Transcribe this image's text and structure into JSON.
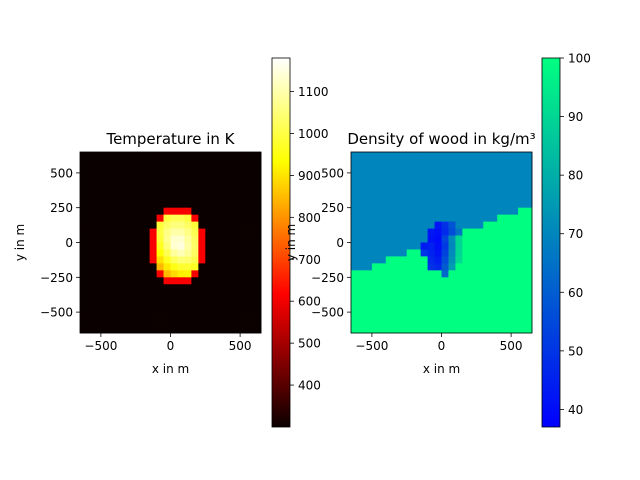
{
  "chart_data": [
    {
      "type": "heatmap",
      "title": "Temperature in K",
      "xlabel": "x in m",
      "ylabel": "y in m",
      "xlim": [
        -650,
        650
      ],
      "ylim": [
        -650,
        650
      ],
      "xticks": [
        {
          "v": -500,
          "label": "−500"
        },
        {
          "v": 0,
          "label": "0"
        },
        {
          "v": 500,
          "label": "500"
        }
      ],
      "yticks": [
        {
          "v": 500,
          "label": "500"
        },
        {
          "v": 250,
          "label": "250"
        },
        {
          "v": 0,
          "label": "0"
        },
        {
          "v": -250,
          "label": "−250"
        },
        {
          "v": -500,
          "label": "−500"
        }
      ],
      "colormap": "hot",
      "background_value": 300,
      "hot_region": {
        "center": [
          50,
          -20
        ],
        "radii": [
          175,
          245
        ],
        "peak": 1180,
        "edge": 850,
        "note": "bright blob with max near upper-right, cooler (orange) towards lower-left"
      },
      "colorbar": {
        "range": [
          300,
          1180
        ],
        "ticks": [
          400,
          500,
          600,
          700,
          800,
          900,
          1000,
          1100
        ],
        "tick_labels": [
          "400",
          "500",
          "600",
          "700",
          "800",
          "900",
          "1000",
          "1100"
        ]
      }
    },
    {
      "type": "heatmap",
      "title": "Density of wood in kg/m³",
      "xlabel": "x in m",
      "ylabel": "y in m",
      "xlim": [
        -650,
        650
      ],
      "ylim": [
        -650,
        650
      ],
      "xticks": [
        {
          "v": -500,
          "label": "−500"
        },
        {
          "v": 0,
          "label": "0"
        },
        {
          "v": 500,
          "label": "500"
        }
      ],
      "yticks": [
        {
          "v": 500,
          "label": "500"
        },
        {
          "v": 250,
          "label": "250"
        },
        {
          "v": 0,
          "label": "0"
        },
        {
          "v": -250,
          "label": "−250"
        },
        {
          "v": -500,
          "label": "−500"
        }
      ],
      "colormap": "winter",
      "upper_region_value": 70,
      "lower_region_value": 100,
      "boundary_line": {
        "slope": 0.38,
        "intercept": 20
      },
      "burned_region": {
        "center": [
          20,
          -30
        ],
        "radii": [
          150,
          200
        ],
        "min": 37
      },
      "colorbar": {
        "range": [
          37,
          100
        ],
        "ticks": [
          40,
          50,
          60,
          70,
          80,
          90,
          100
        ],
        "tick_labels": [
          "40",
          "50",
          "60",
          "70",
          "80",
          "90",
          "100"
        ]
      }
    }
  ]
}
